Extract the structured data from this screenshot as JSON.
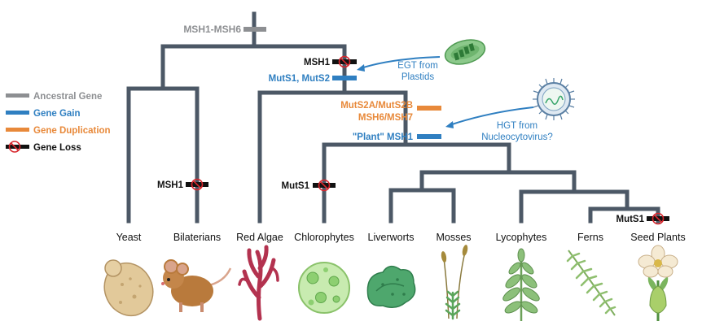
{
  "colors": {
    "branch": "#4c5866",
    "ancestral": "#8d8f92",
    "gain": "#2f7fc1",
    "duplication": "#e8893a",
    "loss": "#111111",
    "loss_symbol": "#d7262c"
  },
  "legend": {
    "ancestral": "Ancestral Gene",
    "gain": "Gene Gain",
    "duplication": "Gene Duplication",
    "loss": "Gene Loss"
  },
  "events": {
    "root": "MSH1-MSH6",
    "msh1_loss_stem": "MSH1",
    "mut_gain": "MutS1, MutS2",
    "mutS2ab": "MutS2A/MutS2B",
    "msh6_msh7": "MSH6/MSH7",
    "plant_msh1": "\"Plant\" MSH1",
    "msh1_loss_bilaterians": "MSH1",
    "muts1_loss_chlorophytes": "MutS1",
    "muts1_loss_seed": "MutS1"
  },
  "annotations": {
    "egt_line1": "EGT from",
    "egt_line2": "Plastids",
    "hgt_line1": "HGT from",
    "hgt_line2": "Nucleocytovirus?"
  },
  "taxa": [
    "Yeast",
    "Bilaterians",
    "Red Algae",
    "Chlorophytes",
    "Liverworts",
    "Mosses",
    "Lycophytes",
    "Ferns",
    "Seed Plants"
  ],
  "icons": {
    "chloroplast": "chloroplast-icon",
    "virus": "giant-virus-icon",
    "organisms": [
      "yeast-icon",
      "mouse-icon",
      "red-algae-icon",
      "chlorophyte-icon",
      "liverwort-icon",
      "moss-icon",
      "lycophyte-icon",
      "fern-icon",
      "seed-plant-flower-icon"
    ]
  }
}
